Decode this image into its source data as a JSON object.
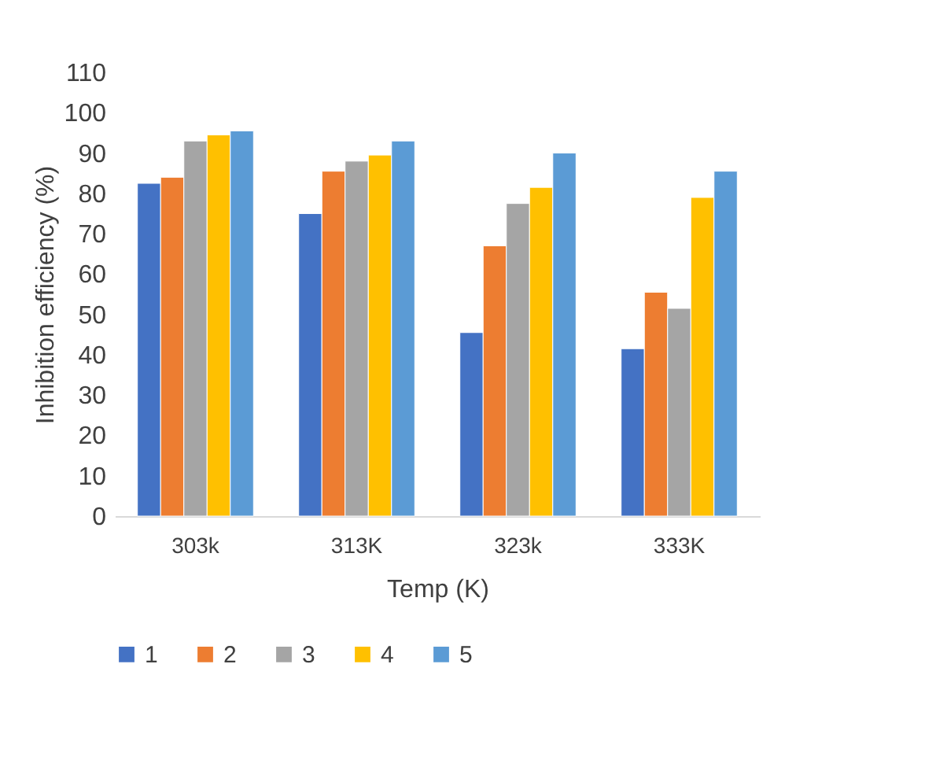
{
  "chart_data": {
    "type": "bar",
    "xlabel": "Temp (K)",
    "ylabel": "Inhibition efficiency (%)",
    "categories": [
      "303k",
      "313K",
      "323k",
      "333K"
    ],
    "series": [
      {
        "name": "1",
        "color": "#4472c4",
        "values": [
          82.5,
          75,
          45.5,
          41.5
        ]
      },
      {
        "name": "2",
        "color": "#ed7d31",
        "values": [
          84,
          85.5,
          67,
          55.5
        ]
      },
      {
        "name": "3",
        "color": "#a5a5a5",
        "values": [
          93,
          88,
          77.5,
          51.5
        ]
      },
      {
        "name": "4",
        "color": "#ffc000",
        "values": [
          94.5,
          89.5,
          81.5,
          79
        ]
      },
      {
        "name": "5",
        "color": "#5b9bd5",
        "values": [
          95.5,
          93,
          90,
          85.5
        ]
      }
    ],
    "ylim": [
      0,
      110
    ],
    "yticks": [
      0,
      10,
      20,
      30,
      40,
      50,
      60,
      70,
      80,
      90,
      100,
      110
    ],
    "grid": false,
    "legend": "bottom"
  }
}
